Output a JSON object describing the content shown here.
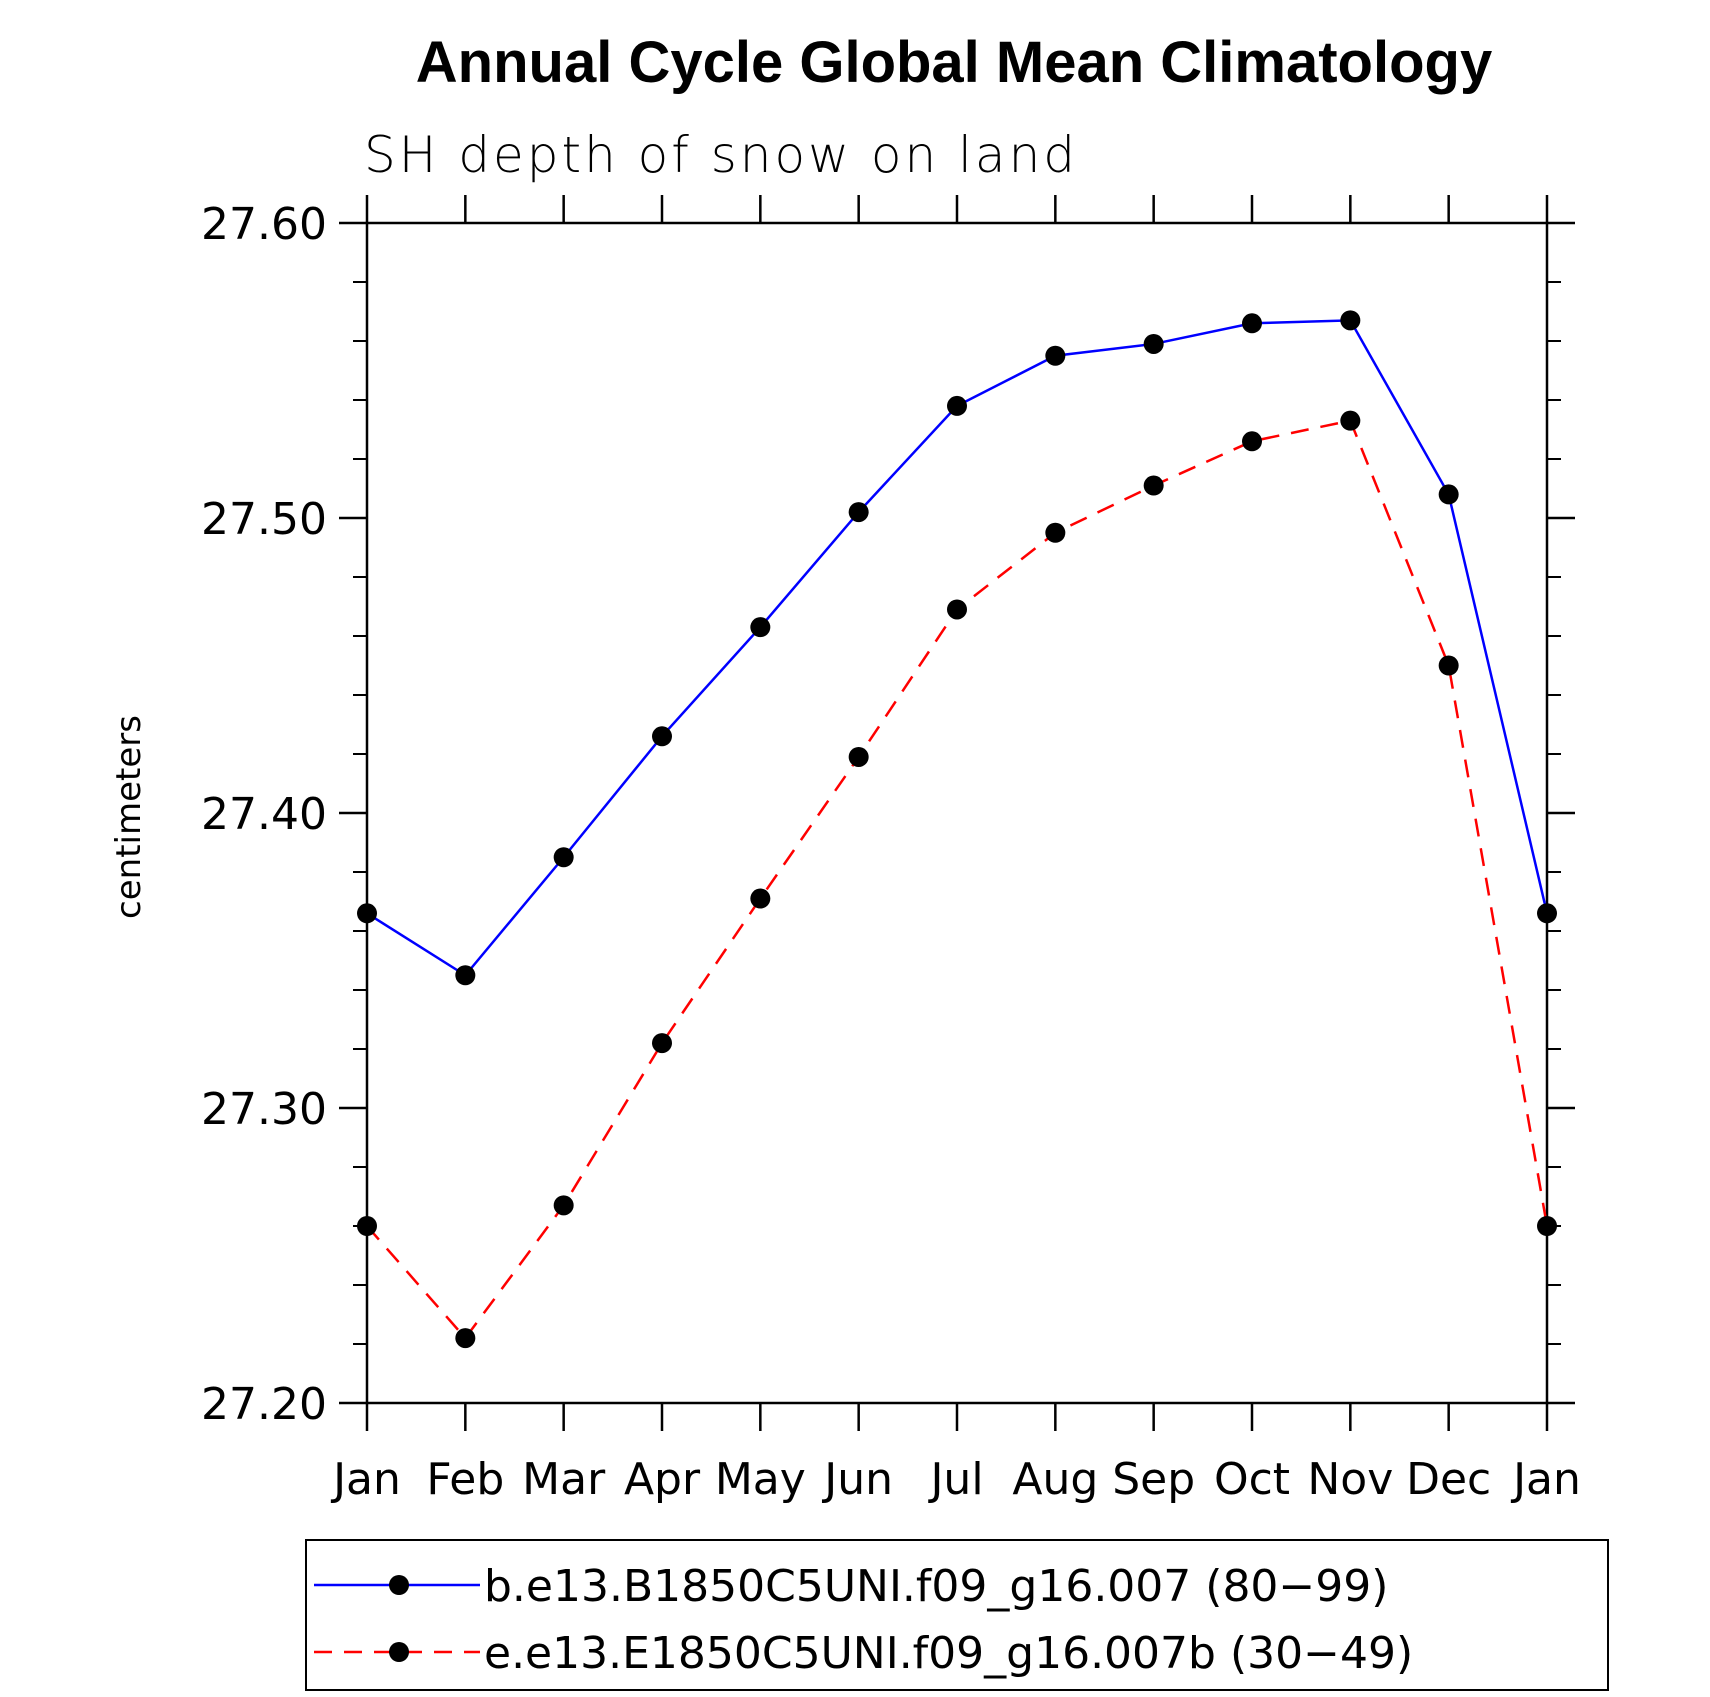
{
  "chart_data": {
    "type": "line",
    "title": "Annual Cycle Global Mean Climatology",
    "subtitle": "SH depth of snow on land",
    "xlabel": "",
    "ylabel": "centimeters",
    "ylim": [
      27.2,
      27.6
    ],
    "yticks": [
      "27.20",
      "27.30",
      "27.40",
      "27.50",
      "27.60"
    ],
    "ytick_values": [
      27.2,
      27.3,
      27.4,
      27.5,
      27.6
    ],
    "categories": [
      "Jan",
      "Feb",
      "Mar",
      "Apr",
      "May",
      "Jun",
      "Jul",
      "Aug",
      "Sep",
      "Oct",
      "Nov",
      "Dec",
      "Jan"
    ],
    "series": [
      {
        "name": "b.e13.B1850C5UNI.f09_g16.007 (80−99)",
        "color": "#0000ff",
        "dash": "solid",
        "values": [
          27.366,
          27.345,
          27.385,
          27.426,
          27.463,
          27.502,
          27.538,
          27.555,
          27.559,
          27.566,
          27.567,
          27.508,
          27.366
        ]
      },
      {
        "name": "e.e13.E1850C5UNI.f09_g16.007b (30−49)",
        "color": "#ff0000",
        "dash": "dashed",
        "values": [
          27.26,
          27.222,
          27.267,
          27.322,
          27.371,
          27.419,
          27.469,
          27.495,
          27.511,
          27.526,
          27.533,
          27.45,
          27.26
        ]
      }
    ],
    "legend_position": "bottom"
  }
}
